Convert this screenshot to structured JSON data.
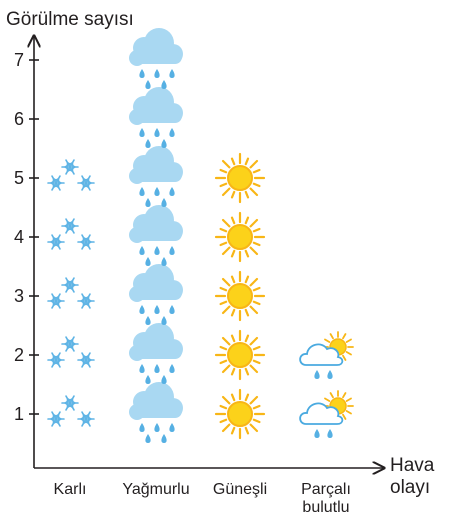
{
  "chart_data": {
    "type": "pictograph",
    "ylabel": "Görülme sayısı",
    "xlabel": "Hava olayı",
    "ylim": [
      0,
      7
    ],
    "yticks": [
      "1",
      "2",
      "3",
      "4",
      "5",
      "6",
      "7"
    ],
    "categories": [
      {
        "label": "Karlı",
        "icon": "snowflake-cluster-icon"
      },
      {
        "label": "Yağmurlu",
        "icon": "rain-cloud-icon"
      },
      {
        "label": "Güneşli",
        "icon": "sun-icon"
      },
      {
        "label": "Parçalı bulutlu",
        "icon": "partly-cloudy-icon"
      }
    ],
    "values": [
      5,
      7,
      5,
      2
    ],
    "colors": {
      "axis": "#231f20",
      "snow": "#5fb4e5",
      "cloud": "#a9d8f2",
      "rain": "#56b0e3",
      "sun": "#f8b616",
      "sun_core": "#fcd21a",
      "partly_cloud_outline": "#4aaae0"
    }
  }
}
